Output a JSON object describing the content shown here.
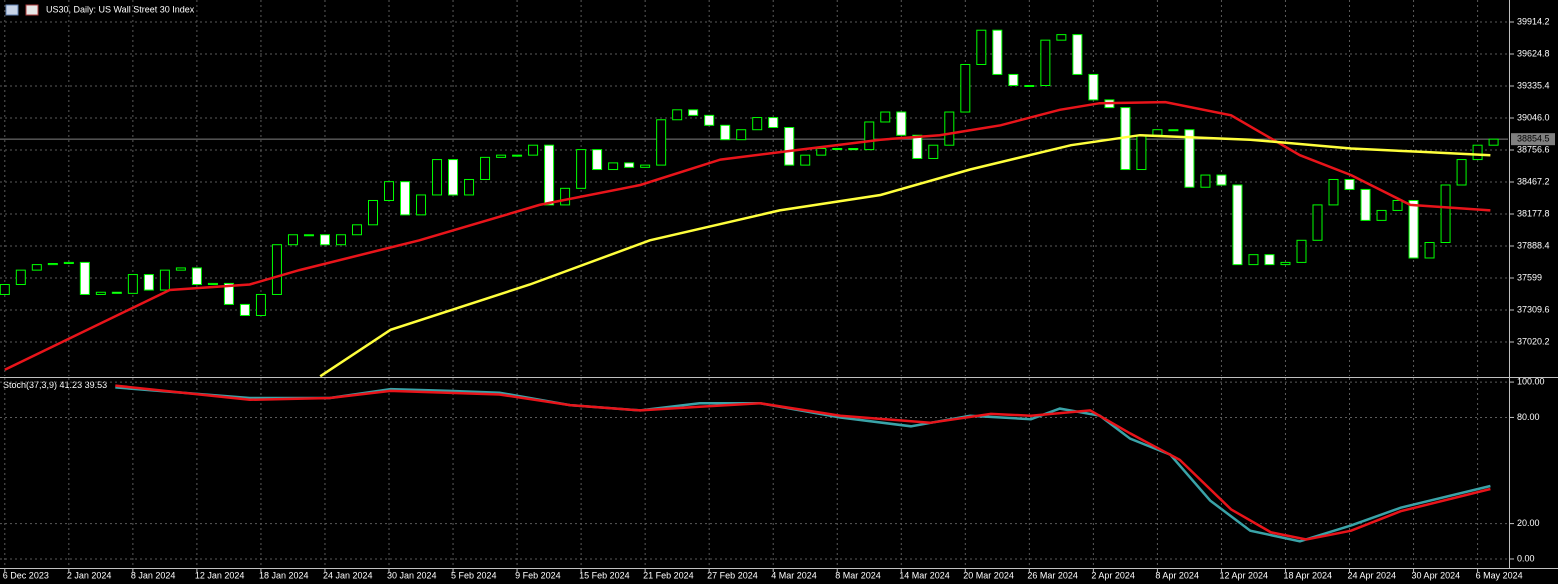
{
  "header": {
    "title": "US30, Daily:  US Wall Street 30 Index"
  },
  "chart_data": [
    {
      "type": "candlestick",
      "up_color": "#00ff00",
      "down_color": "#ffffff",
      "up_fill": "#000000",
      "open": [
        37450,
        37540,
        37670,
        37720,
        37730,
        37740,
        37450,
        37470,
        37460,
        37630,
        37490,
        37670,
        37690,
        37540,
        37550,
        37360,
        37260,
        37450,
        37900,
        37990,
        37990,
        37900,
        37990,
        38080,
        38300,
        38470,
        38170,
        38350,
        38670,
        38350,
        38490,
        38690,
        38710,
        38710,
        38800,
        38260,
        38410,
        38760,
        38580,
        38640,
        38600,
        38620,
        39030,
        39120,
        39070,
        38980,
        38850,
        38940,
        39050,
        38960,
        38620,
        38710,
        38770,
        38770,
        38760,
        39010,
        39100,
        38890,
        38680,
        38800,
        39100,
        39530,
        39840,
        39440,
        39340,
        39340,
        39750,
        39800,
        39440,
        39210,
        39140,
        38580,
        38890,
        38940,
        38940,
        38420,
        38530,
        38440,
        37720,
        37810,
        37720,
        37740,
        37940,
        38260,
        38490,
        38400,
        38120,
        38210,
        38300,
        37780,
        37920,
        38440,
        38670,
        38800
      ],
      "close": [
        37540,
        37670,
        37720,
        37730,
        37740,
        37450,
        37470,
        37460,
        37630,
        37490,
        37670,
        37690,
        37540,
        37550,
        37360,
        37260,
        37450,
        37900,
        37990,
        37990,
        37900,
        37990,
        38080,
        38300,
        38470,
        38170,
        38350,
        38670,
        38350,
        38490,
        38690,
        38710,
        38710,
        38800,
        38260,
        38410,
        38760,
        38580,
        38640,
        38600,
        38620,
        39030,
        39120,
        39070,
        38980,
        38850,
        38940,
        39050,
        38960,
        38620,
        38710,
        38770,
        38770,
        38760,
        39010,
        39100,
        38890,
        38680,
        38800,
        39100,
        39530,
        39840,
        39440,
        39340,
        39340,
        39750,
        39800,
        39440,
        39210,
        39140,
        38580,
        38890,
        38940,
        38940,
        38420,
        38530,
        38440,
        37720,
        37810,
        37720,
        37740,
        37940,
        38260,
        38490,
        38400,
        38120,
        38210,
        38300,
        37780,
        37920,
        38440,
        38670,
        38800,
        38854.5
      ],
      "lines": [
        {
          "color": "#e8141a",
          "x": [
            0,
            10.3,
            15.3,
            18.4,
            25.9,
            33.4,
            39.7,
            44.7,
            49.7,
            54.7,
            58.4,
            62.2,
            65.9,
            68.4,
            72.5,
            76.6,
            80.9,
            84.1,
            87.8,
            92.8
          ],
          "values": [
            36770,
            37490,
            37540,
            37670,
            37940,
            38260,
            38440,
            38670,
            38760,
            38850,
            38890,
            38980,
            39120,
            39180,
            39190,
            39070,
            38710,
            38530,
            38260,
            38210
          ]
        },
        {
          "color": "#ffff3c",
          "x": [
            19.7,
            24.1,
            32.8,
            40.3,
            48.4,
            54.7,
            60.3,
            66.6,
            70.9,
            77.8,
            84.1,
            88.4,
            92.8
          ],
          "values": [
            36710,
            37130,
            37540,
            37940,
            38210,
            38350,
            38580,
            38800,
            38890,
            38850,
            38770,
            38740,
            38710
          ]
        }
      ],
      "current_price": 38854.5,
      "xlim": [
        -0.3,
        93.9
      ],
      "ylim": [
        36712.6,
        40113.2
      ],
      "yticks": [
        39914.2,
        39624.8,
        39335.4,
        {
          "value": 39046.0,
          "label": "39046.0"
        },
        38756.6,
        38467.2,
        38177.8,
        37888.4,
        37599.0,
        37309.6,
        37020.2
      ],
      "xticks": [
        {
          "value": 0,
          "label": "6 Dec 2023"
        },
        {
          "value": 4,
          "label": "2 Jan 2024"
        },
        {
          "value": 8,
          "label": "8 Jan 2024"
        },
        {
          "value": 12,
          "label": "12 Jan 2024"
        },
        {
          "value": 16,
          "label": "18 Jan 2024"
        },
        {
          "value": 20,
          "label": "24 Jan 2024"
        },
        {
          "value": 24,
          "label": "30 Jan 2024"
        },
        {
          "value": 28,
          "label": "5 Feb 2024"
        },
        {
          "value": 32,
          "label": "9 Feb 2024"
        },
        {
          "value": 36,
          "label": "15 Feb 2024"
        },
        {
          "value": 40,
          "label": "21 Feb 2024"
        },
        {
          "value": 44,
          "label": "27 Feb 2024"
        },
        {
          "value": 48,
          "label": "4 Mar 2024"
        },
        {
          "value": 52,
          "label": "8 Mar 2024"
        },
        {
          "value": 56,
          "label": "14 Mar 2024"
        },
        {
          "value": 60,
          "label": "20 Mar 2024"
        },
        {
          "value": 64,
          "label": "26 Mar 2024"
        },
        {
          "value": 68,
          "label": "2 Apr 2024"
        },
        {
          "value": 72,
          "label": "8 Apr 2024"
        },
        {
          "value": 76,
          "label": "12 Apr 2024"
        },
        {
          "value": 80,
          "label": "18 Apr 2024"
        },
        {
          "value": 84,
          "label": "24 Apr 2024"
        },
        {
          "value": 88,
          "label": "30 Apr 2024"
        },
        {
          "value": 92,
          "label": "6 May 2024"
        }
      ],
      "grid": true
    },
    {
      "type": "line",
      "title": "Stoch(37,3,9)",
      "series": [
        {
          "color": "#3aa3a8",
          "x": [
            6.9,
            15.3,
            20.3,
            24.1,
            27.8,
            30.9,
            35.3,
            39.7,
            43.4,
            47.2,
            52.2,
            56.6,
            60.3,
            64.1,
            65.9,
            68.4,
            70.3,
            72.8,
            75.3,
            77.8,
            80.9,
            84.1,
            87.2,
            92.8
          ],
          "values": [
            97,
            91,
            91,
            96,
            95,
            94,
            87,
            84,
            88,
            88,
            80,
            75,
            81,
            79,
            85,
            81,
            68,
            59,
            33,
            16,
            10,
            19,
            29,
            41.23
          ]
        },
        {
          "color": "#e8141a",
          "x": [
            6.9,
            15.3,
            20.3,
            24.1,
            30.9,
            35.3,
            39.7,
            43.4,
            47.2,
            52.2,
            57.8,
            61.6,
            64.1,
            67.8,
            70.3,
            73.4,
            76.6,
            79.1,
            81.3,
            84.1,
            87.2,
            92.8
          ],
          "values": [
            98,
            90,
            91,
            95,
            93,
            87,
            84,
            86,
            88,
            81,
            77,
            82,
            81,
            84,
            71,
            56,
            28,
            15,
            11,
            16,
            27,
            39.53
          ]
        }
      ],
      "xlim": [
        -0.3,
        93.9
      ],
      "ylim": [
        -5.1,
        102.3
      ],
      "yticks": [
        {
          "value": 100,
          "label": "100.00"
        },
        {
          "value": 80,
          "label": "80.00"
        },
        {
          "value": 20,
          "label": "20.00"
        },
        {
          "value": 0,
          "label": "0.00"
        }
      ],
      "grid": true
    }
  ]
}
